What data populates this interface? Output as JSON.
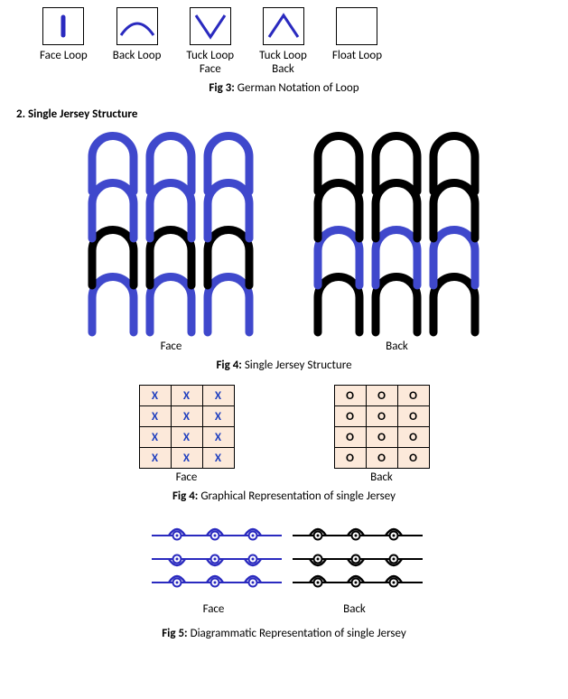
{
  "notation": {
    "items": [
      {
        "label": "Face Loop",
        "glyph": "face"
      },
      {
        "label": "Back Loop",
        "glyph": "back"
      },
      {
        "label": "Tuck Loop\nFace",
        "glyph": "tuckface"
      },
      {
        "label": "Tuck Loop\nBack",
        "glyph": "tuckback"
      },
      {
        "label": "Float Loop",
        "glyph": "float"
      }
    ],
    "stroke_color": "#2a2abf",
    "box_border": "#000000",
    "caption_prefix": "Fig 3:",
    "caption_text": "German Notation of Loop"
  },
  "section2": {
    "heading": "2. Single Jersey Structure"
  },
  "jersey": {
    "face_label": "Face",
    "back_label": "Back",
    "caption_prefix": "Fig 4:",
    "caption_text": "Single Jersey Structure",
    "colors": {
      "blue": "#3f48cc",
      "black": "#000000",
      "bg": "#ffffff"
    }
  },
  "graphical": {
    "rows": 4,
    "cols": 3,
    "face_symbol": "X",
    "back_symbol": "O",
    "face_symbol_color": "#1f3fbf",
    "back_symbol_color": "#000000",
    "cell_bg": "#fce9da",
    "face_label": "Face",
    "back_label": "Back",
    "caption_prefix": "Fig 4:",
    "caption_text": "Graphical Representation of single Jersey"
  },
  "diagrammatic": {
    "face_label": "Face",
    "back_label": "Back",
    "face_color": "#2a2abf",
    "back_color": "#000000",
    "caption_prefix": "Fig 5:",
    "caption_text": "Diagrammatic Representation of single Jersey"
  }
}
